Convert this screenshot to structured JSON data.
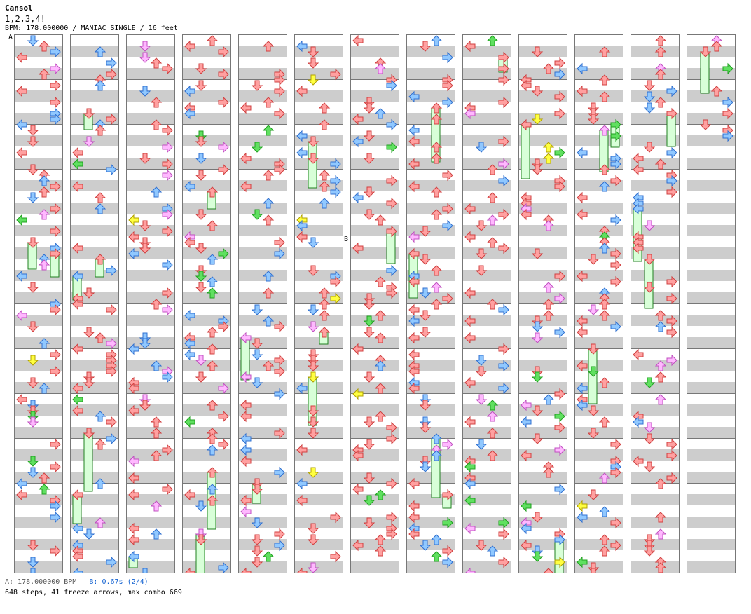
{
  "song": {
    "title": "Cansol",
    "subtitle": "1,2,3,4!",
    "info_line": "BPM: 178.000000 / MANIAC SINGLE / 16 feet"
  },
  "markers": {
    "bpm_label": "A",
    "stop_label": "B"
  },
  "footer": {
    "bpm_text": "A: 178.000000 BPM",
    "stop_text": "B: 0.67s (2/4)",
    "stats_text": "648 steps, 41 freeze arrows, max combo 669"
  },
  "colors": {
    "red_note": "#ffa0a0",
    "red_stroke": "#d04040",
    "blue_note": "#90c8ff",
    "blue_stroke": "#3070d0",
    "green_note": "#60e060",
    "green_stroke": "#20a020",
    "pink_note": "#ffb8ff",
    "pink_stroke": "#c050c0",
    "yellow_note": "#ffff40",
    "yellow_stroke": "#b0a000",
    "freeze_body": "#d8ffd8",
    "freeze_stroke": "#208020",
    "band_gray": "#cdcdcd"
  },
  "chart_data": {
    "type": "step-chart",
    "mode": "MANIAC SINGLE",
    "bpm": 178.0,
    "feet": 16,
    "columns": 13,
    "measures_per_column": 12,
    "lanes": [
      "left",
      "down",
      "up",
      "right"
    ],
    "steps": 648,
    "freeze_arrows": 41,
    "max_combo": 669,
    "stop_seconds": 0.67
  }
}
